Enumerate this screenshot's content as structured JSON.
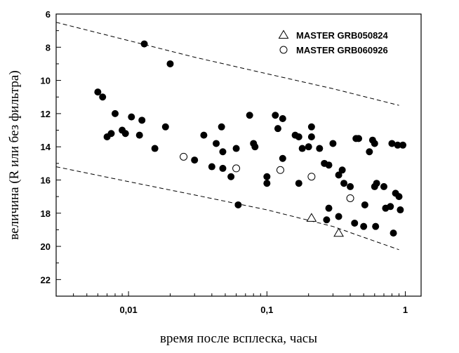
{
  "chart_data": {
    "type": "scatter",
    "xlabel": "время после всплеска, часы",
    "ylabel": "величина (R или без фильтра)",
    "x_scale": "log",
    "xlim": [
      0.003,
      1.3
    ],
    "ylim": [
      23,
      6
    ],
    "y_inverted": true,
    "x_ticks": [
      {
        "value": 0.01,
        "label": "0,01"
      },
      {
        "value": 0.1,
        "label": "0,1"
      },
      {
        "value": 1,
        "label": "1"
      }
    ],
    "y_ticks": [
      6,
      8,
      10,
      12,
      14,
      16,
      18,
      20,
      22
    ],
    "grid": false,
    "legend_position": "top-right",
    "series": [
      {
        "name": "MASTER GRB050824",
        "marker": "open-triangle",
        "points": [
          [
            0.21,
            18.3
          ],
          [
            0.33,
            19.2
          ]
        ]
      },
      {
        "name": "MASTER GRB060926",
        "marker": "open-circle",
        "points": [
          [
            0.025,
            14.6
          ],
          [
            0.06,
            15.3
          ],
          [
            0.125,
            15.4
          ],
          [
            0.21,
            15.8
          ],
          [
            0.4,
            17.1
          ]
        ]
      },
      {
        "name": "",
        "marker": "filled-circle",
        "points": [
          [
            0.006,
            10.7
          ],
          [
            0.0065,
            11.0
          ],
          [
            0.007,
            13.4
          ],
          [
            0.0075,
            13.2
          ],
          [
            0.008,
            12.0
          ],
          [
            0.009,
            13.0
          ],
          [
            0.0095,
            13.2
          ],
          [
            0.0105,
            12.2
          ],
          [
            0.012,
            13.3
          ],
          [
            0.0125,
            12.4
          ],
          [
            0.013,
            7.8
          ],
          [
            0.0155,
            14.1
          ],
          [
            0.0185,
            12.8
          ],
          [
            0.02,
            9.0
          ],
          [
            0.03,
            14.8
          ],
          [
            0.035,
            13.3
          ],
          [
            0.04,
            15.2
          ],
          [
            0.043,
            13.8
          ],
          [
            0.047,
            12.8
          ],
          [
            0.048,
            14.3
          ],
          [
            0.048,
            15.3
          ],
          [
            0.055,
            15.8
          ],
          [
            0.06,
            14.1
          ],
          [
            0.062,
            17.5
          ],
          [
            0.075,
            12.1
          ],
          [
            0.08,
            13.8
          ],
          [
            0.082,
            14.0
          ],
          [
            0.1,
            15.8
          ],
          [
            0.1,
            16.2
          ],
          [
            0.115,
            12.1
          ],
          [
            0.12,
            12.9
          ],
          [
            0.13,
            12.3
          ],
          [
            0.13,
            14.7
          ],
          [
            0.16,
            13.3
          ],
          [
            0.17,
            13.4
          ],
          [
            0.17,
            16.2
          ],
          [
            0.18,
            14.1
          ],
          [
            0.2,
            14.0
          ],
          [
            0.21,
            12.8
          ],
          [
            0.21,
            13.4
          ],
          [
            0.24,
            14.1
          ],
          [
            0.26,
            15.0
          ],
          [
            0.27,
            18.4
          ],
          [
            0.28,
            17.7
          ],
          [
            0.28,
            15.1
          ],
          [
            0.3,
            13.8
          ],
          [
            0.33,
            15.7
          ],
          [
            0.33,
            18.2
          ],
          [
            0.35,
            15.4
          ],
          [
            0.36,
            16.2
          ],
          [
            0.4,
            16.4
          ],
          [
            0.43,
            18.6
          ],
          [
            0.44,
            13.5
          ],
          [
            0.46,
            13.5
          ],
          [
            0.5,
            18.8
          ],
          [
            0.51,
            17.5
          ],
          [
            0.55,
            14.3
          ],
          [
            0.58,
            13.6
          ],
          [
            0.6,
            13.8
          ],
          [
            0.6,
            16.4
          ],
          [
            0.61,
            18.8
          ],
          [
            0.62,
            16.2
          ],
          [
            0.7,
            16.4
          ],
          [
            0.72,
            17.7
          ],
          [
            0.78,
            17.6
          ],
          [
            0.8,
            13.8
          ],
          [
            0.82,
            19.2
          ],
          [
            0.85,
            16.8
          ],
          [
            0.88,
            13.9
          ],
          [
            0.9,
            17.0
          ],
          [
            0.92,
            17.8
          ],
          [
            0.96,
            13.9
          ]
        ]
      }
    ],
    "dashed_lines": [
      {
        "points": [
          [
            0.003,
            6.5
          ],
          [
            0.01,
            7.6
          ],
          [
            0.03,
            8.6
          ],
          [
            0.1,
            9.6
          ],
          [
            0.3,
            10.5
          ],
          [
            0.9,
            11.5
          ]
        ]
      },
      {
        "points": [
          [
            0.003,
            15.2
          ],
          [
            0.01,
            16.1
          ],
          [
            0.03,
            16.9
          ],
          [
            0.1,
            17.8
          ],
          [
            0.3,
            18.8
          ],
          [
            0.9,
            20.2
          ]
        ]
      }
    ]
  }
}
